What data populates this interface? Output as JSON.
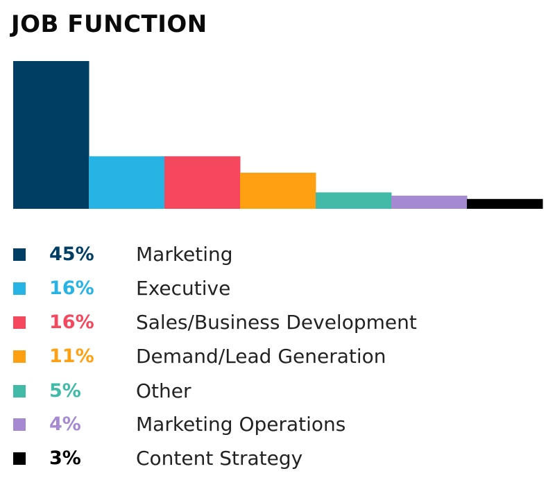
{
  "chart_data": {
    "type": "bar",
    "title": "JOB FUNCTION",
    "categories": [
      "Marketing",
      "Executive",
      "Sales/Business Development",
      "Demand/Lead Generation",
      "Other",
      "Marketing Operations",
      "Content Strategy"
    ],
    "values": [
      45,
      16,
      16,
      11,
      5,
      4,
      3
    ],
    "value_labels": [
      "45%",
      "16%",
      "16%",
      "11%",
      "5%",
      "4%",
      "3%"
    ],
    "colors": [
      "#003f63",
      "#27b3e3",
      "#f5475e",
      "#ffa012",
      "#41bba7",
      "#a58ad1",
      "#000000"
    ],
    "ylim": [
      0,
      45
    ],
    "grid": false,
    "legend": "bottom"
  }
}
